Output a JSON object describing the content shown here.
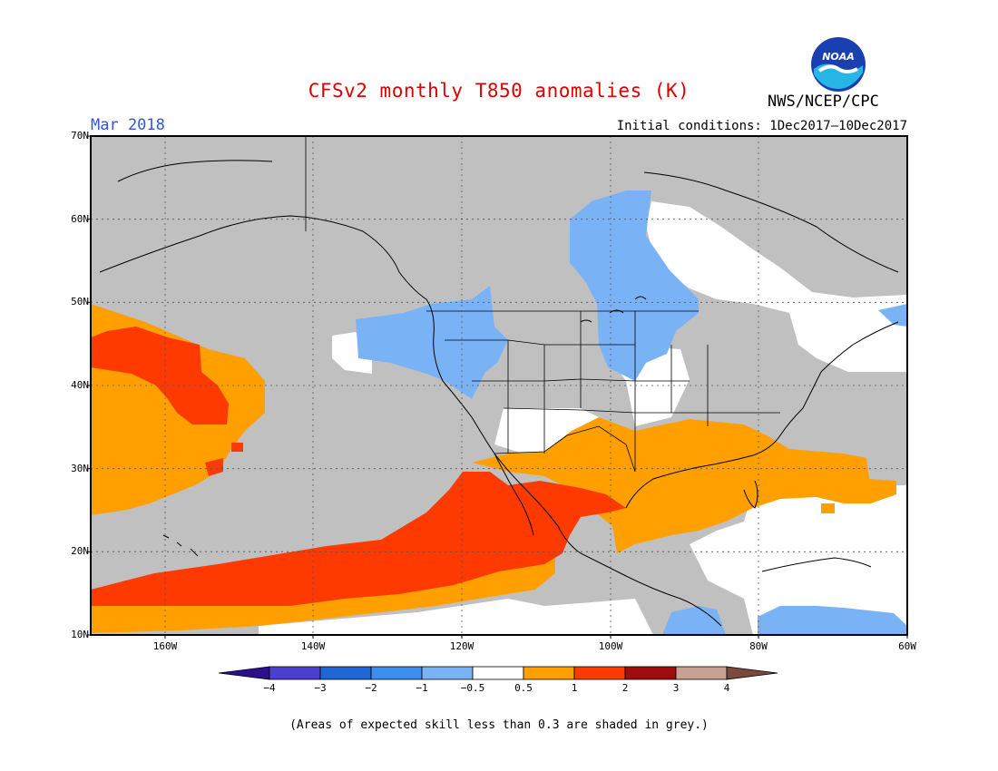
{
  "title": "CFSv2 monthly T850 anomalies (K)",
  "month": "Mar 2018",
  "initial_conditions": "Initial conditions: 1Dec2017–10Dec2017",
  "agency": "NWS/NCEP/CPC",
  "logo_text": "NOAA",
  "colors": {
    "title": "#dd0000",
    "month": "#3355dd",
    "grey_mask": "#c0c0c0",
    "neutral": "#ffffff",
    "warm_0_5_1": "#ff9f00",
    "warm_1_2": "#ff3a00",
    "cool_m1_m0_5": "#79b3f5"
  },
  "map": {
    "lat_labels": [
      "70N",
      "60N",
      "50N",
      "40N",
      "30N",
      "20N",
      "10N"
    ],
    "lon_labels": [
      "160W",
      "140W",
      "120W",
      "100W",
      "80W",
      "60W"
    ]
  },
  "colorbar": {
    "labels": [
      "−4",
      "−3",
      "−2",
      "−1",
      "−0.5",
      "0.5",
      "1",
      "2",
      "3",
      "4"
    ],
    "colors": [
      "#2a0f8f",
      "#4b3fd1",
      "#1f66d6",
      "#3e8ef0",
      "#79b3f5",
      "#ffffff",
      "#ff9f00",
      "#ff3a00",
      "#a10b0b",
      "#c9a190",
      "#7a4a3c"
    ]
  },
  "note": "(Areas of expected skill less than 0.3 are shaded in grey.)"
}
